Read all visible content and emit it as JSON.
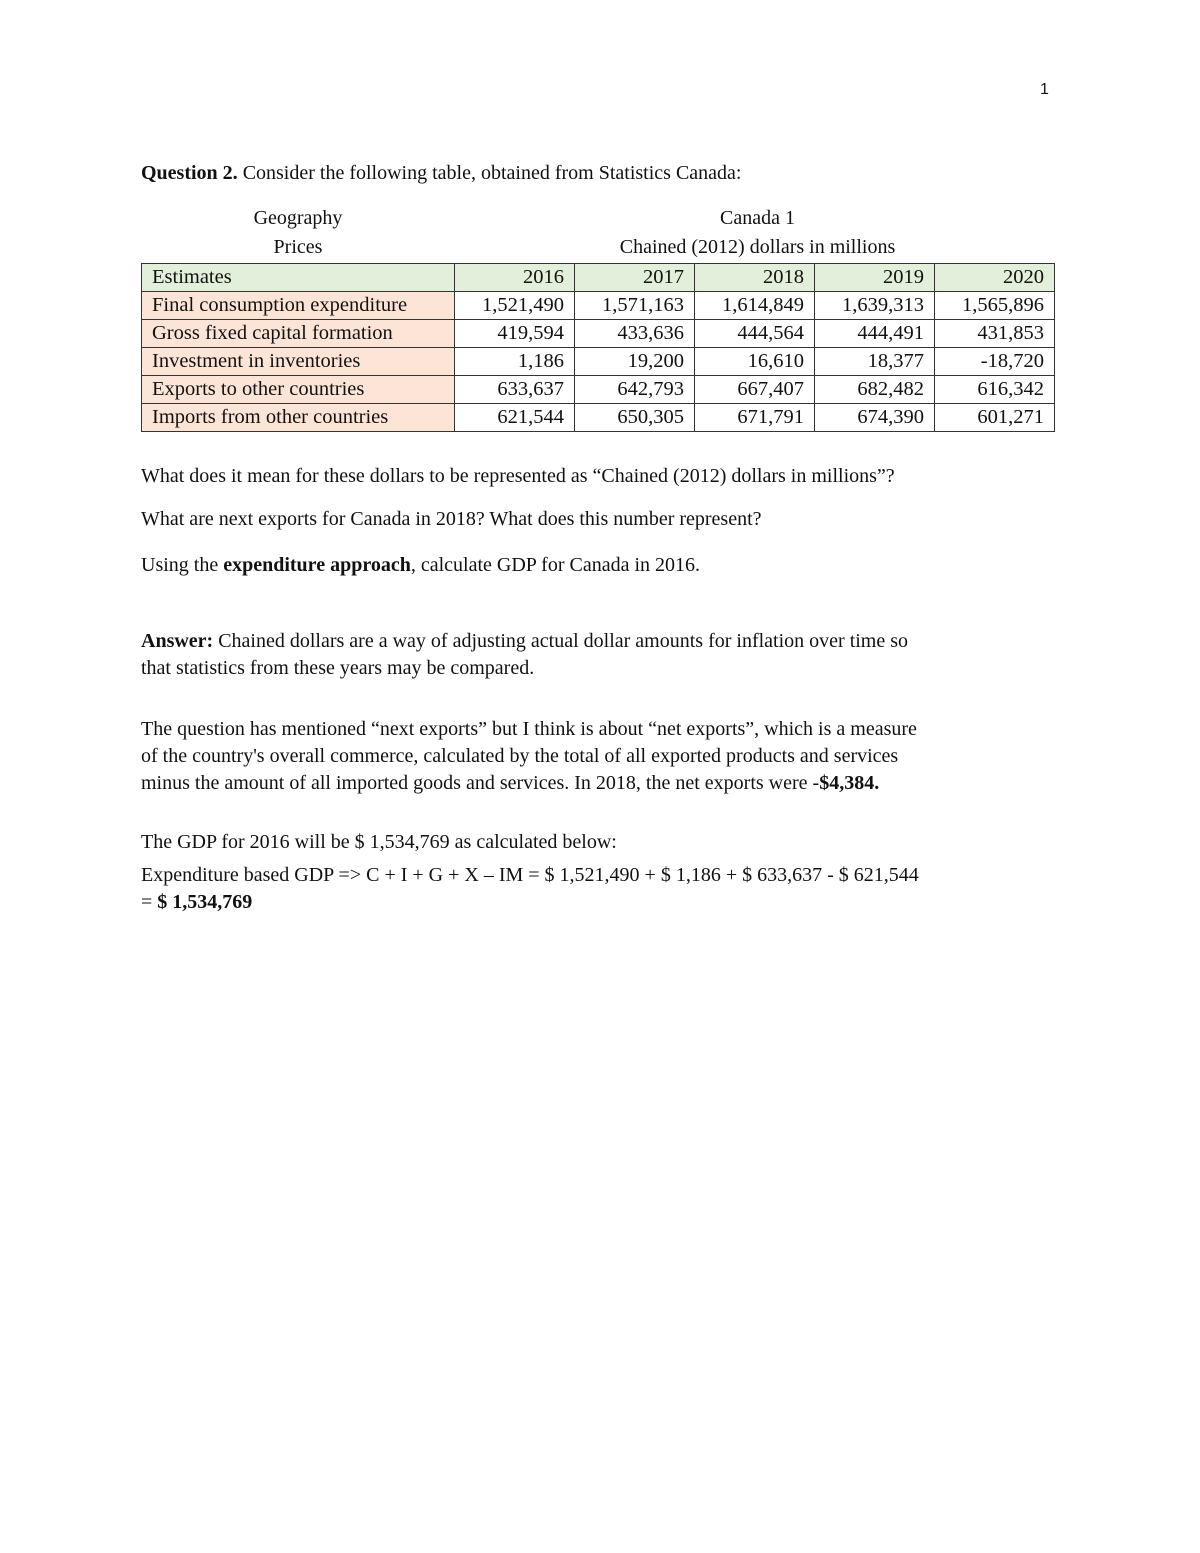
{
  "page_number": "1",
  "question": {
    "label": "Question 2.",
    "text": " Consider the following table, obtained from Statistics Canada:"
  },
  "table_meta": {
    "geography_label": "Geography",
    "geography_value": "Canada 1",
    "prices_label": "Prices",
    "prices_value": "Chained (2012) dollars in millions"
  },
  "table": {
    "colors": {
      "header_bg": "#e2efda",
      "label_bg": "#fce4d6"
    },
    "header": [
      "Estimates",
      "2016",
      "2017",
      "2018",
      "2019",
      "2020"
    ],
    "rows": [
      [
        "Final consumption expenditure",
        "1,521,490",
        "1,571,163",
        "1,614,849",
        "1,639,313",
        "1,565,896"
      ],
      [
        "Gross fixed capital formation",
        "419,594",
        "433,636",
        "444,564",
        "444,491",
        "431,853"
      ],
      [
        "Investment in inventories",
        "1,186",
        "19,200",
        "16,610",
        "18,377",
        "-18,720"
      ],
      [
        "Exports to other countries",
        "633,637",
        "642,793",
        "667,407",
        "682,482",
        "616,342"
      ],
      [
        "Imports from other countries",
        "621,544",
        "650,305",
        "671,791",
        "674,390",
        "601,271"
      ]
    ]
  },
  "questions": {
    "q1": "What does it mean for these dollars to be represented as “Chained (2012) dollars in millions”?",
    "q2": "What are next exports for Canada in 2018? What does this number represent?",
    "q3_pre": "Using the ",
    "q3_bold": "expenditure approach",
    "q3_post": ", calculate GDP for Canada in 2016."
  },
  "answer": {
    "label": "Answer:",
    "p1_line1": " Chained dollars are a way of adjusting actual dollar amounts for inflation over time so",
    "p1_line2": "that statistics from these years may be compared.",
    "p2_line1": "The question has mentioned “next exports” but I think is about “net exports”, which is a measure",
    "p2_line2": "of the country's overall commerce, calculated by the total of all exported products and services",
    "p2_line3": "minus the amount of all imported goods and services. In 2018, the net exports were -",
    "p2_bold": "$4,384.",
    "p3_line1": "The GDP for 2016 will be $ 1,534,769 as calculated below:",
    "p3_line2": "Expenditure based GDP => C + I + G + X – IM = $ 1,521,490 + $ 1,186 + $ 633,637 - $ 621,544",
    "p3_line3_pre": "= ",
    "p3_line3_bold": "$ 1,534,769"
  }
}
